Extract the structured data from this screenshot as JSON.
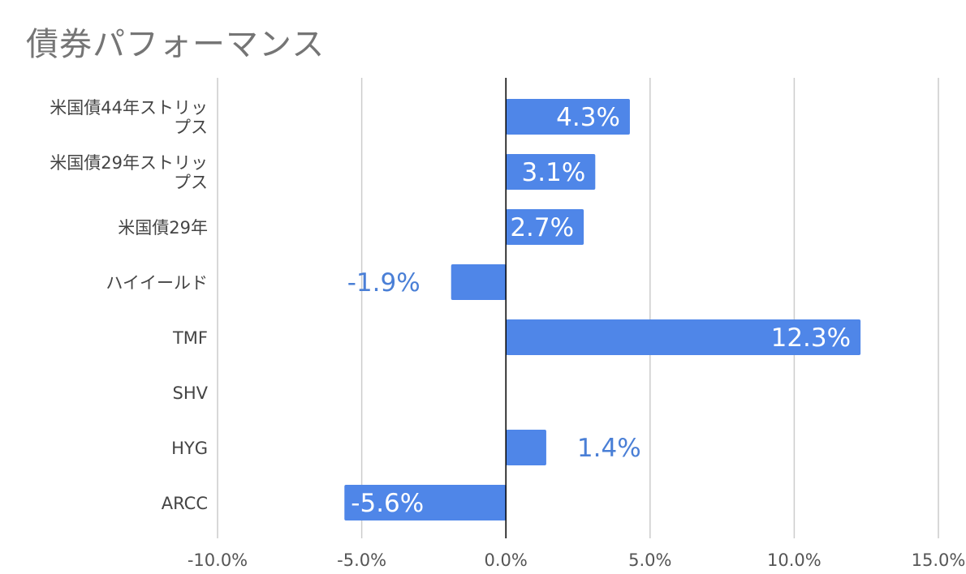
{
  "chart_data": {
    "type": "bar",
    "orientation": "horizontal",
    "title": "債券パフォーマンス",
    "categories": [
      [
        "米国債44年ストリッ",
        "プス"
      ],
      [
        "米国債29年ストリッ",
        "プス"
      ],
      [
        "米国債29年"
      ],
      [
        "ハイイールド"
      ],
      [
        "TMF"
      ],
      [
        "SHV"
      ],
      [
        "HYG"
      ],
      [
        "ARCC"
      ]
    ],
    "values": [
      4.3,
      3.1,
      2.7,
      -1.9,
      12.3,
      null,
      1.4,
      -5.6
    ],
    "data_labels": [
      "4.3%",
      "3.1%",
      "2.7%",
      "-1.9%",
      "12.3%",
      "",
      "1.4%",
      "-5.6%"
    ],
    "x_ticks": [
      "-10.0%",
      "-5.0%",
      "0.0%",
      "5.0%",
      "10.0%",
      "15.0%"
    ],
    "xlim": [
      -10,
      15
    ],
    "grid": true,
    "legend": "none",
    "colors": {
      "bar": "#4f86e8",
      "label_inside": "#ffffff",
      "label_outside": "#4a7fd6",
      "grid": "#cccccc",
      "axis": "#000000",
      "text": "#444444",
      "title": "#757575"
    }
  }
}
